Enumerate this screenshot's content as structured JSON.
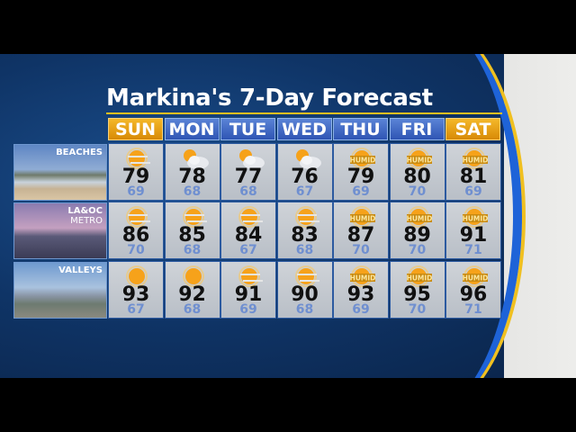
{
  "title": "Markina's 7-Day Forecast",
  "days": [
    "SUN",
    "MON",
    "TUE",
    "WED",
    "THU",
    "FRI",
    "SAT"
  ],
  "weekend_color": "#e8a010",
  "weekday_color": "#3e66c4",
  "regions": [
    {
      "label": "BEACHES",
      "label2": "",
      "forecast": [
        {
          "icon": "hazy-sun",
          "hi": "79",
          "lo": "69"
        },
        {
          "icon": "partly-cloudy",
          "hi": "78",
          "lo": "68"
        },
        {
          "icon": "partly-cloudy",
          "hi": "77",
          "lo": "68"
        },
        {
          "icon": "partly-cloudy",
          "hi": "76",
          "lo": "67"
        },
        {
          "icon": "humid",
          "hi": "79",
          "lo": "69"
        },
        {
          "icon": "humid",
          "hi": "80",
          "lo": "70"
        },
        {
          "icon": "humid",
          "hi": "81",
          "lo": "69"
        }
      ]
    },
    {
      "label": "LA&OC",
      "label2": "METRO",
      "forecast": [
        {
          "icon": "hazy-sun",
          "hi": "86",
          "lo": "70"
        },
        {
          "icon": "hazy-sun",
          "hi": "85",
          "lo": "68"
        },
        {
          "icon": "hazy-sun",
          "hi": "84",
          "lo": "67"
        },
        {
          "icon": "hazy-sun",
          "hi": "83",
          "lo": "68"
        },
        {
          "icon": "humid",
          "hi": "87",
          "lo": "70"
        },
        {
          "icon": "humid",
          "hi": "89",
          "lo": "70"
        },
        {
          "icon": "humid",
          "hi": "91",
          "lo": "71"
        }
      ]
    },
    {
      "label": "VALLEYS",
      "label2": "",
      "forecast": [
        {
          "icon": "sunny",
          "hi": "93",
          "lo": "67"
        },
        {
          "icon": "sunny",
          "hi": "92",
          "lo": "68"
        },
        {
          "icon": "hazy-sun",
          "hi": "91",
          "lo": "69"
        },
        {
          "icon": "hazy-sun",
          "hi": "90",
          "lo": "68"
        },
        {
          "icon": "humid",
          "hi": "93",
          "lo": "69"
        },
        {
          "icon": "humid",
          "hi": "95",
          "lo": "70"
        },
        {
          "icon": "humid",
          "hi": "96",
          "lo": "71"
        }
      ]
    }
  ],
  "humid_text": "HUMID"
}
